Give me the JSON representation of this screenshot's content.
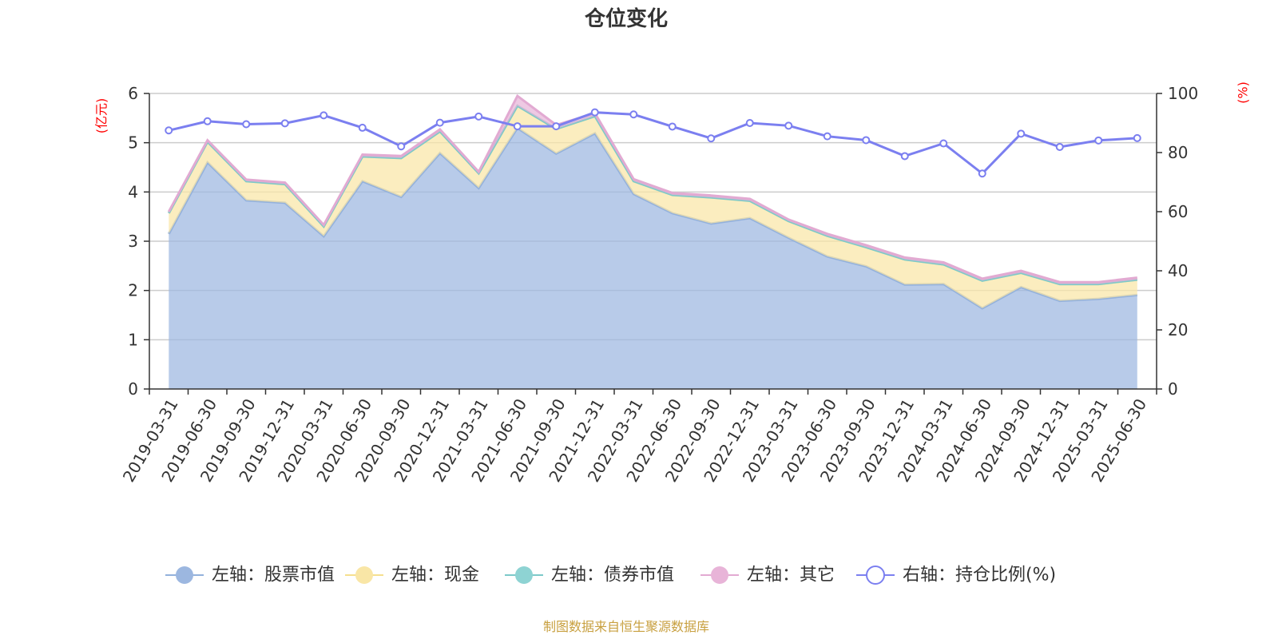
{
  "title": "仓位变化",
  "source_note": "制图数据来自恒生聚源数据库",
  "chart_data": {
    "type": "area",
    "title": "仓位变化",
    "x": [
      "2019-03-31",
      "2019-06-30",
      "2019-09-30",
      "2019-12-31",
      "2020-03-31",
      "2020-06-30",
      "2020-09-30",
      "2020-12-31",
      "2021-03-31",
      "2021-06-30",
      "2021-09-30",
      "2021-12-31",
      "2022-03-31",
      "2022-06-30",
      "2022-09-30",
      "2022-12-31",
      "2023-03-31",
      "2023-06-30",
      "2023-09-30",
      "2023-12-31",
      "2024-03-31",
      "2024-06-30",
      "2024-09-30",
      "2024-12-31",
      "2025-03-31",
      "2025-06-30"
    ],
    "left_axis": {
      "label": "(亿元)",
      "ylim": [
        0,
        6
      ],
      "ticks": [
        "0",
        "1",
        "2",
        "3",
        "4",
        "5",
        "6"
      ]
    },
    "right_axis": {
      "label": "(%)",
      "ylim": [
        0,
        100
      ],
      "ticks": [
        "0",
        "20",
        "40",
        "60",
        "80",
        "100"
      ]
    },
    "stacked": true,
    "series": [
      {
        "name": "左轴：股票市值",
        "axis": "left",
        "color": "#9cb7e0",
        "values": [
          3.15,
          4.6,
          3.83,
          3.78,
          3.1,
          4.22,
          3.9,
          4.79,
          4.08,
          5.3,
          4.78,
          5.19,
          3.96,
          3.57,
          3.36,
          3.47,
          3.07,
          2.69,
          2.49,
          2.12,
          2.13,
          1.64,
          2.07,
          1.79,
          1.83,
          1.91
        ]
      },
      {
        "name": "左轴：现金",
        "axis": "left",
        "color": "#f9e6a6",
        "values": [
          0.42,
          0.42,
          0.39,
          0.38,
          0.2,
          0.5,
          0.79,
          0.44,
          0.3,
          0.45,
          0.5,
          0.35,
          0.26,
          0.37,
          0.53,
          0.35,
          0.34,
          0.42,
          0.39,
          0.51,
          0.4,
          0.56,
          0.29,
          0.34,
          0.3,
          0.31
        ]
      },
      {
        "name": "左轴：债券市值",
        "axis": "left",
        "color": "#8ed3d3",
        "values": [
          0,
          0,
          0,
          0,
          0,
          0,
          0,
          0,
          0,
          0,
          0,
          0,
          0,
          0,
          0,
          0,
          0,
          0,
          0,
          0,
          0,
          0,
          0,
          0,
          0,
          0
        ]
      },
      {
        "name": "左轴：其它",
        "axis": "left",
        "color": "#e8b4d8",
        "values": [
          0.03,
          0.03,
          0.03,
          0.03,
          0.03,
          0.04,
          0.04,
          0.04,
          0.03,
          0.2,
          0.08,
          0.06,
          0.04,
          0.04,
          0.04,
          0.04,
          0.03,
          0.04,
          0.04,
          0.04,
          0.04,
          0.04,
          0.04,
          0.04,
          0.04,
          0.04
        ]
      },
      {
        "name": "右轴：持仓比例(%)",
        "axis": "right",
        "color": "#7b7ff0",
        "values": [
          87.5,
          90.6,
          89.6,
          89.9,
          92.6,
          88.4,
          82.1,
          90.1,
          92.2,
          88.9,
          88.9,
          93.6,
          92.9,
          88.8,
          84.8,
          90.0,
          89.1,
          85.5,
          84.2,
          78.8,
          83.1,
          72.9,
          86.4,
          81.9,
          84.1,
          84.9
        ]
      }
    ],
    "legend_position": "bottom",
    "grid": true
  }
}
